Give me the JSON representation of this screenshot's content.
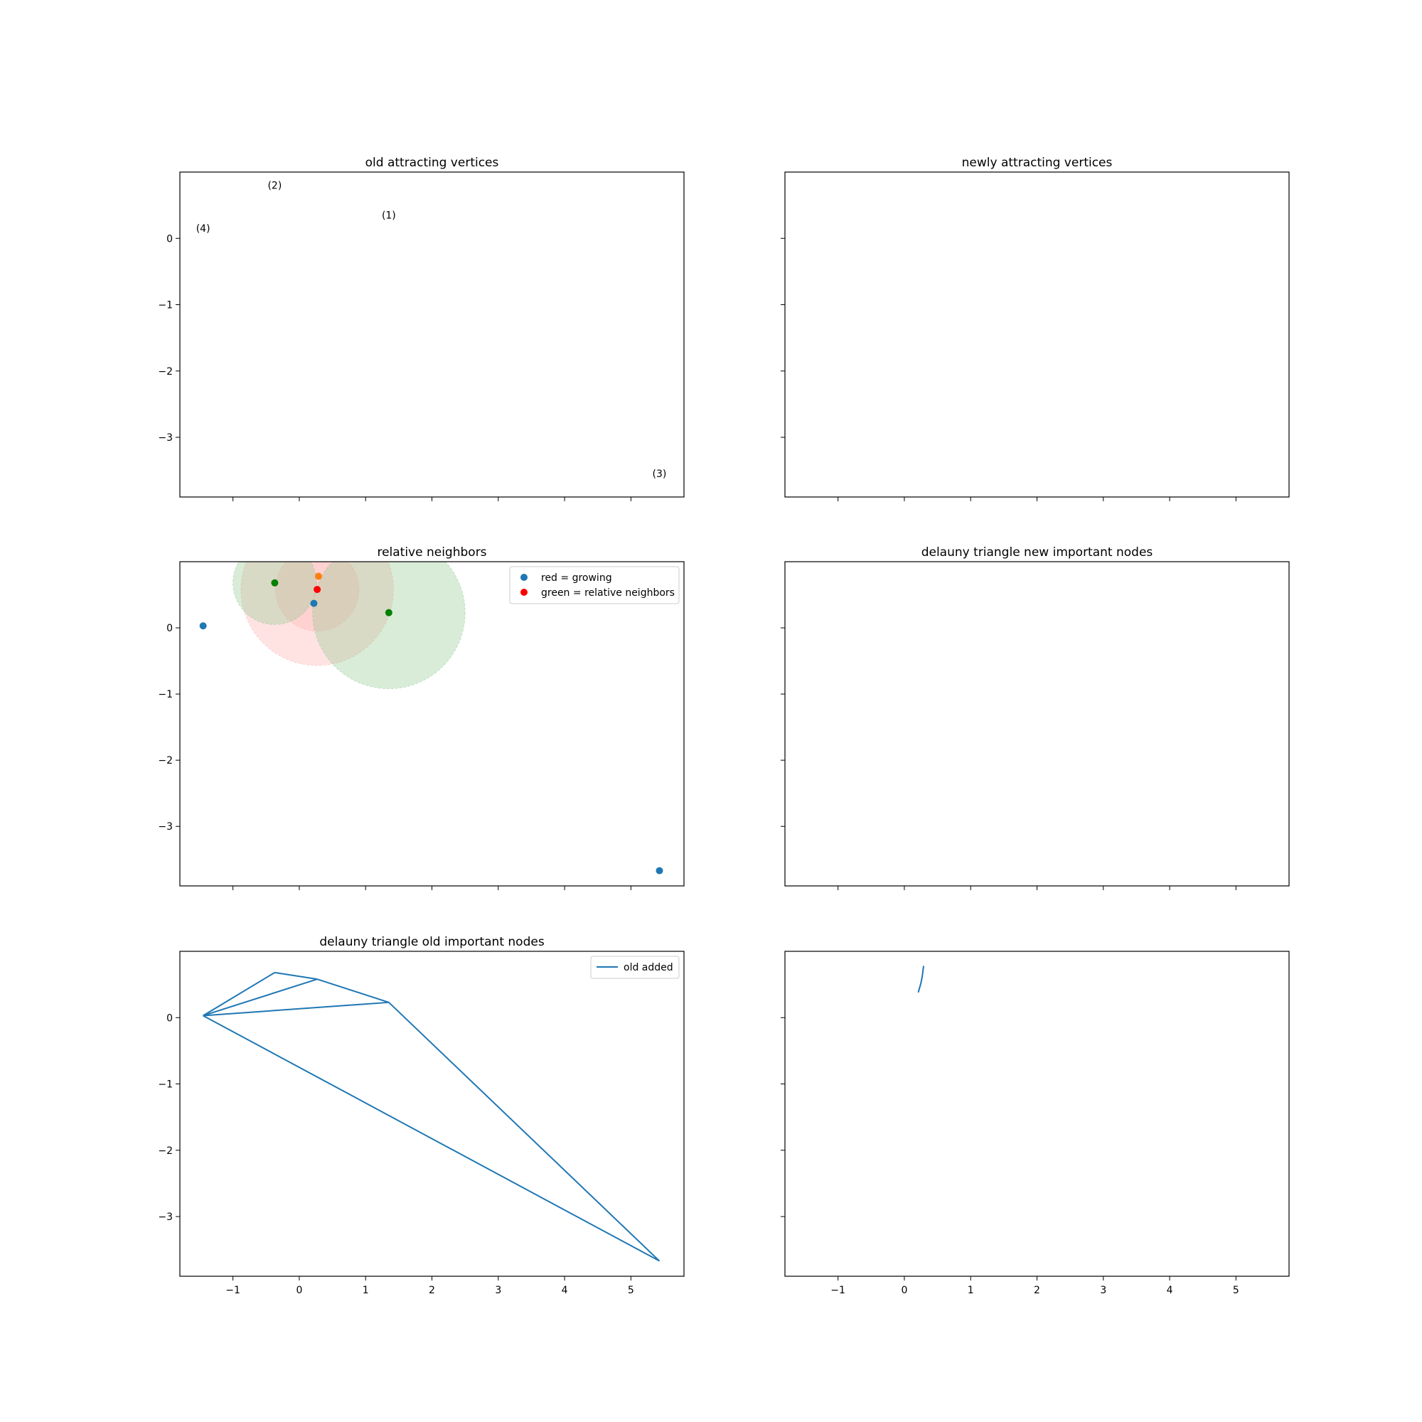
{
  "colors": {
    "blue": "#1f77b4",
    "orange": "#ff7f0e",
    "green": "#008000",
    "red": "#ff0000",
    "circle_red": "#ffb0b0",
    "circle_green": "#90c890"
  },
  "chart_data": [
    {
      "type": "scatter",
      "title": "old attracting vertices",
      "xlim": [
        -1.8,
        5.8
      ],
      "ylim": [
        -3.9,
        1.0
      ],
      "xticks": [
        "−1",
        "0",
        "1",
        "2",
        "3",
        "4",
        "5"
      ],
      "xtick_values": [
        -1,
        0,
        1,
        2,
        3,
        4,
        5
      ],
      "xtick_labels_shown": false,
      "yticks": [
        "0",
        "−1",
        "−2",
        "−3"
      ],
      "ytick_values": [
        0,
        -1,
        -2,
        -3
      ],
      "ytick_labels_shown": true,
      "annotations": [
        {
          "text": "(2)",
          "x": -0.37,
          "y": 0.75
        },
        {
          "text": "(1)",
          "x": 1.35,
          "y": 0.3
        },
        {
          "text": "(4)",
          "x": -1.45,
          "y": 0.1
        },
        {
          "text": "(3)",
          "x": 5.43,
          "y": -3.6
        }
      ]
    },
    {
      "type": "scatter",
      "title": "newly attracting vertices",
      "xlim": [
        -1.8,
        5.8
      ],
      "ylim": [
        -3.9,
        1.0
      ],
      "xtick_values": [
        -1,
        0,
        1,
        2,
        3,
        4,
        5
      ],
      "xtick_labels_shown": false,
      "ytick_values": [
        0,
        -1,
        -2,
        -3
      ],
      "ytick_labels_shown": false
    },
    {
      "type": "scatter",
      "title": "relative neighbors",
      "xlim": [
        -1.8,
        5.8
      ],
      "ylim": [
        -3.9,
        1.0
      ],
      "xtick_values": [
        -1,
        0,
        1,
        2,
        3,
        4,
        5
      ],
      "xtick_labels_shown": false,
      "yticks": [
        "0",
        "−1",
        "−2",
        "−3"
      ],
      "ytick_values": [
        0,
        -1,
        -2,
        -3
      ],
      "ytick_labels_shown": true,
      "legend": [
        "red = growing",
        "green = relative neighbors"
      ],
      "legend_placement": "top-right",
      "points": [
        {
          "x": -1.45,
          "y": 0.03,
          "color": "blue"
        },
        {
          "x": 5.43,
          "y": -3.67,
          "color": "blue"
        },
        {
          "x": 0.22,
          "y": 0.37,
          "color": "blue"
        },
        {
          "x": -0.37,
          "y": 0.68,
          "color": "green"
        },
        {
          "x": 1.35,
          "y": 0.23,
          "color": "green"
        },
        {
          "x": 0.29,
          "y": 0.78,
          "color": "orange"
        },
        {
          "x": 0.27,
          "y": 0.58,
          "color": "red"
        }
      ],
      "circles": [
        {
          "cx": 0.27,
          "cy": 0.58,
          "r": 1.15,
          "color": "circle_red"
        },
        {
          "cx": 0.27,
          "cy": 0.58,
          "r": 0.63,
          "color": "circle_red"
        },
        {
          "cx": -0.37,
          "cy": 0.68,
          "r": 0.63,
          "color": "circle_green"
        },
        {
          "cx": 1.35,
          "cy": 0.23,
          "r": 1.15,
          "color": "circle_green"
        }
      ]
    },
    {
      "type": "line",
      "title": "delauny triangle new important nodes",
      "xlim": [
        -1.8,
        5.8
      ],
      "ylim": [
        -3.9,
        1.0
      ],
      "xtick_values": [
        -1,
        0,
        1,
        2,
        3,
        4,
        5
      ],
      "xtick_labels_shown": false,
      "ytick_values": [
        0,
        -1,
        -2,
        -3
      ],
      "ytick_labels_shown": false
    },
    {
      "type": "line",
      "title": "delauny triangle old important nodes",
      "xlim": [
        -1.8,
        5.8
      ],
      "ylim": [
        -3.9,
        1.0
      ],
      "xticks": [
        "−1",
        "0",
        "1",
        "2",
        "3",
        "4",
        "5"
      ],
      "xtick_values": [
        -1,
        0,
        1,
        2,
        3,
        4,
        5
      ],
      "xtick_labels_shown": true,
      "yticks": [
        "0",
        "−1",
        "−2",
        "−3"
      ],
      "ytick_values": [
        0,
        -1,
        -2,
        -3
      ],
      "ytick_labels_shown": true,
      "legend": [
        "old added"
      ],
      "legend_placement": "top-right",
      "segments": [
        [
          [
            -1.45,
            0.03
          ],
          [
            -0.37,
            0.68
          ]
        ],
        [
          [
            -0.37,
            0.68
          ],
          [
            0.27,
            0.58
          ]
        ],
        [
          [
            -1.45,
            0.03
          ],
          [
            0.27,
            0.58
          ]
        ],
        [
          [
            0.27,
            0.58
          ],
          [
            1.35,
            0.23
          ]
        ],
        [
          [
            -1.45,
            0.03
          ],
          [
            1.35,
            0.23
          ]
        ],
        [
          [
            1.35,
            0.23
          ],
          [
            5.43,
            -3.67
          ]
        ],
        [
          [
            -1.45,
            0.03
          ],
          [
            5.43,
            -3.67
          ]
        ]
      ]
    },
    {
      "type": "line",
      "title": "",
      "xlim": [
        -1.8,
        5.8
      ],
      "ylim": [
        -3.9,
        1.0
      ],
      "xticks": [
        "−1",
        "0",
        "1",
        "2",
        "3",
        "4",
        "5"
      ],
      "xtick_values": [
        -1,
        0,
        1,
        2,
        3,
        4,
        5
      ],
      "xtick_labels_shown": true,
      "ytick_values": [
        0,
        -1,
        -2,
        -3
      ],
      "ytick_labels_shown": false,
      "curves": [
        [
          [
            0.21,
            0.38
          ],
          [
            0.25,
            0.52
          ],
          [
            0.27,
            0.62
          ],
          [
            0.29,
            0.78
          ]
        ]
      ]
    }
  ]
}
